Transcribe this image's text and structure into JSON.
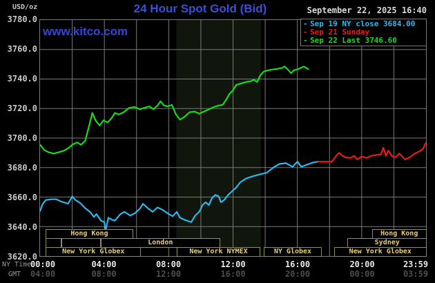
{
  "header": {
    "unit_label": "USD/oz",
    "title": "24 Hour Spot Gold (Bid)",
    "datetime": "September 22, 2025 16:40"
  },
  "watermark": "www.kitco.com",
  "legend": [
    {
      "label": "Sep 19 NY close 3684.00",
      "color": "#2ab9f0"
    },
    {
      "label": "Sep 21 Sunday",
      "color": "#f01818"
    },
    {
      "label": "Sep 22 Last 3746.60",
      "color": "#17dd17"
    }
  ],
  "colors": {
    "background": "#000000",
    "title_blue": "#3b4fd8",
    "grid": "#7b7b7b",
    "session_band": "#11160d",
    "khaki_border": "#8f8f5a",
    "khaki_text": "#e8cc80",
    "ny_time_text": "#e8e8e8",
    "gmt_text": "#4e4e4e",
    "ylabel_text": "#c9c9c9",
    "cyan": "#2ab9f0",
    "red": "#f01818",
    "green": "#17dd17"
  },
  "chart_data": {
    "type": "line",
    "title": "24 Hour Spot Gold (Bid)",
    "ylabel": "USD/oz",
    "grid": true,
    "legend_position": "top-right",
    "ylim": [
      3620,
      3780
    ],
    "xlim_hours": [
      0,
      24
    ],
    "y_ticks": [
      3780,
      3760,
      3740,
      3720,
      3700,
      3680,
      3660,
      3640,
      3620
    ],
    "x_axis": {
      "ny_label": "NY Time",
      "gmt_label": "GMT",
      "ticks": [
        {
          "hour": 0,
          "ny": "00:00",
          "gmt": "04:00"
        },
        {
          "hour": 4,
          "ny": "04:00",
          "gmt": "08:00"
        },
        {
          "hour": 8,
          "ny": "08:00",
          "gmt": "12:00"
        },
        {
          "hour": 12,
          "ny": "12:00",
          "gmt": "16:00"
        },
        {
          "hour": 16,
          "ny": "16:00",
          "gmt": "20:00"
        },
        {
          "hour": 20,
          "ny": "20:00",
          "gmt": "00:00"
        },
        {
          "hour": 23.983,
          "ny": "23:59",
          "gmt": "03:59"
        }
      ]
    },
    "nymex_band_hours": [
      8.47,
      13.73
    ],
    "series": [
      {
        "name": "Sep 19 NY close 3684.00",
        "color": "#2ab9f0",
        "width": 2.2,
        "points": [
          [
            0,
            3650.5
          ],
          [
            0.15,
            3655
          ],
          [
            0.35,
            3658
          ],
          [
            0.7,
            3658.5
          ],
          [
            1.0,
            3658.5
          ],
          [
            1.3,
            3657
          ],
          [
            1.6,
            3656
          ],
          [
            1.75,
            3655.5
          ],
          [
            2.0,
            3660.5
          ],
          [
            2.2,
            3658
          ],
          [
            2.5,
            3656
          ],
          [
            2.8,
            3652.5
          ],
          [
            3.1,
            3650
          ],
          [
            3.35,
            3646.5
          ],
          [
            3.5,
            3648.5
          ],
          [
            3.8,
            3644
          ],
          [
            4.0,
            3643
          ],
          [
            4.07,
            3637
          ],
          [
            4.25,
            3646
          ],
          [
            4.5,
            3644.5
          ],
          [
            4.65,
            3644
          ],
          [
            5.0,
            3648.5
          ],
          [
            5.25,
            3650
          ],
          [
            5.6,
            3647.5
          ],
          [
            5.9,
            3649
          ],
          [
            6.2,
            3652
          ],
          [
            6.4,
            3655.5
          ],
          [
            6.7,
            3652.5
          ],
          [
            7.0,
            3650
          ],
          [
            7.3,
            3653
          ],
          [
            7.6,
            3651.5
          ],
          [
            7.8,
            3650
          ],
          [
            8.0,
            3648.5
          ],
          [
            8.25,
            3647
          ],
          [
            8.5,
            3650
          ],
          [
            8.7,
            3646
          ],
          [
            9.0,
            3644.5
          ],
          [
            9.4,
            3643
          ],
          [
            9.65,
            3647.5
          ],
          [
            9.9,
            3650
          ],
          [
            10.1,
            3654.5
          ],
          [
            10.3,
            3656.5
          ],
          [
            10.5,
            3654.5
          ],
          [
            10.7,
            3659.5
          ],
          [
            10.9,
            3661.5
          ],
          [
            11.1,
            3660.5
          ],
          [
            11.25,
            3656.5
          ],
          [
            11.45,
            3658
          ],
          [
            11.7,
            3661.5
          ],
          [
            11.95,
            3664
          ],
          [
            12.2,
            3666.5
          ],
          [
            12.45,
            3670
          ],
          [
            12.8,
            3672.5
          ],
          [
            13.2,
            3674
          ],
          [
            13.7,
            3675.5
          ],
          [
            14.1,
            3676.5
          ],
          [
            14.5,
            3680
          ],
          [
            14.9,
            3682.5
          ],
          [
            15.3,
            3683
          ],
          [
            15.7,
            3680.5
          ],
          [
            16.0,
            3684
          ],
          [
            16.25,
            3680.5
          ],
          [
            16.6,
            3682
          ],
          [
            17.0,
            3683.5
          ],
          [
            17.3,
            3684
          ]
        ]
      },
      {
        "name": "Sep 21 Sunday",
        "color": "#f01818",
        "width": 2.2,
        "points": [
          [
            17.3,
            3684
          ],
          [
            18.15,
            3684
          ],
          [
            18.45,
            3688.5
          ],
          [
            18.6,
            3690
          ],
          [
            18.8,
            3688
          ],
          [
            19.0,
            3687
          ],
          [
            19.3,
            3686.5
          ],
          [
            19.55,
            3688
          ],
          [
            19.7,
            3685.5
          ],
          [
            20.0,
            3687.5
          ],
          [
            20.3,
            3686.5
          ],
          [
            20.6,
            3688
          ],
          [
            20.9,
            3688.5
          ],
          [
            21.2,
            3689
          ],
          [
            21.35,
            3693.5
          ],
          [
            21.5,
            3688
          ],
          [
            21.65,
            3691.5
          ],
          [
            21.9,
            3687.5
          ],
          [
            22.1,
            3687
          ],
          [
            22.35,
            3689.5
          ],
          [
            22.7,
            3685.5
          ],
          [
            23.0,
            3687
          ],
          [
            23.3,
            3689.5
          ],
          [
            23.6,
            3691
          ],
          [
            23.8,
            3692.5
          ],
          [
            23.98,
            3696.5
          ]
        ]
      },
      {
        "name": "Sep 22 Last 3746.60",
        "color": "#17dd17",
        "width": 2.2,
        "points": [
          [
            0,
            3695.5
          ],
          [
            0.25,
            3692
          ],
          [
            0.5,
            3690.5
          ],
          [
            0.85,
            3689.5
          ],
          [
            1.2,
            3690.5
          ],
          [
            1.5,
            3691.5
          ],
          [
            1.8,
            3693.5
          ],
          [
            2.0,
            3695.5
          ],
          [
            2.3,
            3697
          ],
          [
            2.55,
            3695.5
          ],
          [
            2.8,
            3698
          ],
          [
            3.0,
            3706
          ],
          [
            3.25,
            3717
          ],
          [
            3.45,
            3712
          ],
          [
            3.7,
            3708.5
          ],
          [
            3.95,
            3712
          ],
          [
            4.2,
            3710.5
          ],
          [
            4.45,
            3713.5
          ],
          [
            4.65,
            3717
          ],
          [
            4.9,
            3716
          ],
          [
            5.2,
            3717.5
          ],
          [
            5.55,
            3720.5
          ],
          [
            5.9,
            3721
          ],
          [
            6.2,
            3719.5
          ],
          [
            6.5,
            3720.5
          ],
          [
            6.8,
            3721.5
          ],
          [
            7.05,
            3719.5
          ],
          [
            7.3,
            3722
          ],
          [
            7.5,
            3725
          ],
          [
            7.7,
            3722
          ],
          [
            7.95,
            3721.5
          ],
          [
            8.2,
            3722.5
          ],
          [
            8.45,
            3716
          ],
          [
            8.7,
            3712.5
          ],
          [
            9.0,
            3714.5
          ],
          [
            9.3,
            3717.5
          ],
          [
            9.6,
            3718
          ],
          [
            9.9,
            3716.5
          ],
          [
            10.2,
            3718
          ],
          [
            10.5,
            3719.5
          ],
          [
            10.8,
            3721
          ],
          [
            11.1,
            3722
          ],
          [
            11.35,
            3722.5
          ],
          [
            11.55,
            3725.5
          ],
          [
            11.75,
            3729.5
          ],
          [
            12.0,
            3732.5
          ],
          [
            12.2,
            3736
          ],
          [
            12.5,
            3737
          ],
          [
            12.8,
            3738
          ],
          [
            13.1,
            3738.5
          ],
          [
            13.3,
            3739.5
          ],
          [
            13.5,
            3738
          ],
          [
            13.7,
            3742.5
          ],
          [
            13.9,
            3745
          ],
          [
            14.2,
            3746
          ],
          [
            14.5,
            3746.5
          ],
          [
            14.8,
            3747
          ],
          [
            15.05,
            3747.5
          ],
          [
            15.2,
            3748.5
          ],
          [
            15.4,
            3746.5
          ],
          [
            15.6,
            3744
          ],
          [
            15.8,
            3746
          ],
          [
            16.0,
            3746.5
          ],
          [
            16.2,
            3747.5
          ],
          [
            16.4,
            3748.5
          ],
          [
            16.55,
            3747.5
          ],
          [
            16.67,
            3746.6
          ]
        ]
      }
    ],
    "sessions": [
      [
        {
          "label": "Hong Kong",
          "t1": 0.4,
          "t2": 5.8
        },
        {
          "label": "Hong Kong",
          "t1": 20.6,
          "t2": 24
        }
      ],
      [
        {
          "label": "",
          "t1": 0.4,
          "t2": 1.35
        },
        {
          "label": "",
          "t1": 1.35,
          "t2": 3.8
        },
        {
          "label": "London",
          "t1": 3.8,
          "t2": 11.2
        },
        {
          "label": "Sydney",
          "t1": 19.1,
          "t2": 24
        }
      ],
      [
        {
          "label": "New York Globex",
          "t1": 0.4,
          "t2": 6.3
        },
        {
          "label": "New York NYMEX",
          "t1": 8.5,
          "t2": 13.7
        },
        {
          "label": "NY Globex",
          "t1": 13.9,
          "t2": 17.5
        },
        {
          "label": "New York Globex",
          "t1": 18.25,
          "t2": 24
        }
      ]
    ]
  }
}
